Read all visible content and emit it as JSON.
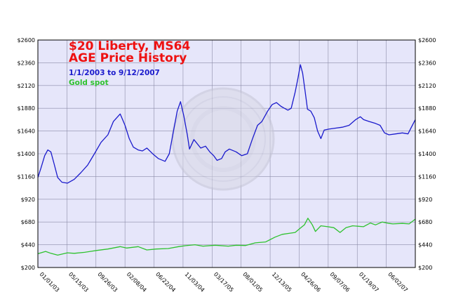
{
  "chart_data": {
    "type": "line",
    "title": "$20 Liberty, MS64",
    "title_line2": "AGE Price History",
    "subtitle": "1/1/2003 to 9/12/2007",
    "xlabel": "",
    "ylabel": "",
    "ylim": [
      200,
      2600
    ],
    "y_ticks": [
      200,
      440,
      680,
      920,
      1160,
      1400,
      1640,
      1880,
      2120,
      2360,
      2600
    ],
    "y_tick_labels": [
      "$200",
      "$440",
      "$680",
      "$920",
      "$1160",
      "$1400",
      "$1640",
      "$1880",
      "$2120",
      "$2360",
      "$2600"
    ],
    "x_range": [
      "2003-01-01",
      "2007-09-12"
    ],
    "x_tick_labels": [
      "01/01/03",
      "05/15/03",
      "09/26/03",
      "02/08/04",
      "06/22/04",
      "11/03/04",
      "03/17/05",
      "08/01/05",
      "12/13/05",
      "04/26/06",
      "09/07/06",
      "01/19/07",
      "06/02/07"
    ],
    "grid": true,
    "background_color": "#e6e6fa",
    "series": [
      {
        "name": "$20 Liberty, MS64",
        "color": "#1a1acc",
        "points": [
          [
            "2003-01-01",
            1150
          ],
          [
            "2003-01-15",
            1250
          ],
          [
            "2003-02-01",
            1380
          ],
          [
            "2003-02-15",
            1440
          ],
          [
            "2003-03-01",
            1420
          ],
          [
            "2003-03-15",
            1300
          ],
          [
            "2003-04-01",
            1150
          ],
          [
            "2003-04-20",
            1100
          ],
          [
            "2003-05-15",
            1090
          ],
          [
            "2003-06-15",
            1130
          ],
          [
            "2003-07-15",
            1200
          ],
          [
            "2003-08-15",
            1280
          ],
          [
            "2003-09-15",
            1400
          ],
          [
            "2003-10-15",
            1520
          ],
          [
            "2003-11-15",
            1600
          ],
          [
            "2003-12-10",
            1740
          ],
          [
            "2004-01-10",
            1820
          ],
          [
            "2004-02-01",
            1700
          ],
          [
            "2004-02-20",
            1560
          ],
          [
            "2004-03-10",
            1470
          ],
          [
            "2004-04-01",
            1440
          ],
          [
            "2004-04-20",
            1430
          ],
          [
            "2004-05-10",
            1460
          ],
          [
            "2004-06-10",
            1390
          ],
          [
            "2004-07-01",
            1350
          ],
          [
            "2004-08-01",
            1320
          ],
          [
            "2004-08-20",
            1400
          ],
          [
            "2004-09-05",
            1600
          ],
          [
            "2004-09-25",
            1850
          ],
          [
            "2004-10-10",
            1950
          ],
          [
            "2004-10-25",
            1800
          ],
          [
            "2004-11-10",
            1600
          ],
          [
            "2004-11-20",
            1450
          ],
          [
            "2004-12-10",
            1550
          ],
          [
            "2005-01-10",
            1460
          ],
          [
            "2005-02-01",
            1480
          ],
          [
            "2005-02-20",
            1420
          ],
          [
            "2005-03-10",
            1380
          ],
          [
            "2005-03-25",
            1330
          ],
          [
            "2005-04-15",
            1350
          ],
          [
            "2005-05-01",
            1420
          ],
          [
            "2005-05-20",
            1450
          ],
          [
            "2005-06-20",
            1420
          ],
          [
            "2005-07-15",
            1380
          ],
          [
            "2005-08-10",
            1400
          ],
          [
            "2005-09-01",
            1550
          ],
          [
            "2005-09-25",
            1700
          ],
          [
            "2005-10-15",
            1740
          ],
          [
            "2005-11-10",
            1850
          ],
          [
            "2005-12-01",
            1920
          ],
          [
            "2005-12-20",
            1940
          ],
          [
            "2006-01-10",
            1900
          ],
          [
            "2006-01-25",
            1880
          ],
          [
            "2006-02-10",
            1860
          ],
          [
            "2006-02-25",
            1880
          ],
          [
            "2006-03-15",
            2050
          ],
          [
            "2006-03-28",
            2200
          ],
          [
            "2006-04-08",
            2340
          ],
          [
            "2006-04-18",
            2250
          ],
          [
            "2006-04-30",
            2050
          ],
          [
            "2006-05-10",
            1870
          ],
          [
            "2006-05-25",
            1850
          ],
          [
            "2006-06-10",
            1780
          ],
          [
            "2006-06-25",
            1640
          ],
          [
            "2006-07-10",
            1560
          ],
          [
            "2006-07-25",
            1650
          ],
          [
            "2006-08-15",
            1660
          ],
          [
            "2006-09-15",
            1670
          ],
          [
            "2006-10-15",
            1680
          ],
          [
            "2006-11-15",
            1700
          ],
          [
            "2006-12-15",
            1760
          ],
          [
            "2007-01-05",
            1790
          ],
          [
            "2007-01-20",
            1760
          ],
          [
            "2007-02-15",
            1740
          ],
          [
            "2007-03-15",
            1720
          ],
          [
            "2007-04-05",
            1700
          ],
          [
            "2007-04-25",
            1620
          ],
          [
            "2007-05-15",
            1600
          ],
          [
            "2007-06-15",
            1610
          ],
          [
            "2007-07-15",
            1620
          ],
          [
            "2007-08-10",
            1610
          ],
          [
            "2007-08-25",
            1680
          ],
          [
            "2007-09-12",
            1760
          ]
        ]
      },
      {
        "name": "Gold spot",
        "color": "#2ec22e",
        "points": [
          [
            "2003-01-01",
            345
          ],
          [
            "2003-02-05",
            370
          ],
          [
            "2003-03-01",
            350
          ],
          [
            "2003-04-01",
            330
          ],
          [
            "2003-05-15",
            355
          ],
          [
            "2003-06-15",
            350
          ],
          [
            "2003-08-01",
            360
          ],
          [
            "2003-09-26",
            380
          ],
          [
            "2003-11-15",
            395
          ],
          [
            "2004-01-10",
            420
          ],
          [
            "2004-02-08",
            405
          ],
          [
            "2004-04-01",
            420
          ],
          [
            "2004-05-10",
            385
          ],
          [
            "2004-06-22",
            395
          ],
          [
            "2004-08-15",
            400
          ],
          [
            "2004-10-01",
            420
          ],
          [
            "2004-11-03",
            430
          ],
          [
            "2004-12-15",
            440
          ],
          [
            "2005-01-20",
            425
          ],
          [
            "2005-03-17",
            435
          ],
          [
            "2005-05-15",
            425
          ],
          [
            "2005-06-20",
            435
          ],
          [
            "2005-08-01",
            432
          ],
          [
            "2005-09-15",
            460
          ],
          [
            "2005-11-01",
            470
          ],
          [
            "2005-12-13",
            520
          ],
          [
            "2006-01-15",
            550
          ],
          [
            "2006-02-15",
            560
          ],
          [
            "2006-03-15",
            570
          ],
          [
            "2006-04-10",
            620
          ],
          [
            "2006-04-26",
            650
          ],
          [
            "2006-05-12",
            720
          ],
          [
            "2006-06-01",
            650
          ],
          [
            "2006-06-15",
            580
          ],
          [
            "2006-07-10",
            640
          ],
          [
            "2006-08-10",
            630
          ],
          [
            "2006-09-07",
            620
          ],
          [
            "2006-10-05",
            570
          ],
          [
            "2006-11-01",
            620
          ],
          [
            "2006-12-01",
            640
          ],
          [
            "2007-01-19",
            630
          ],
          [
            "2007-02-20",
            670
          ],
          [
            "2007-03-15",
            650
          ],
          [
            "2007-04-15",
            680
          ],
          [
            "2007-05-15",
            665
          ],
          [
            "2007-06-02",
            660
          ],
          [
            "2007-07-15",
            665
          ],
          [
            "2007-08-15",
            660
          ],
          [
            "2007-09-12",
            710
          ]
        ]
      }
    ]
  }
}
